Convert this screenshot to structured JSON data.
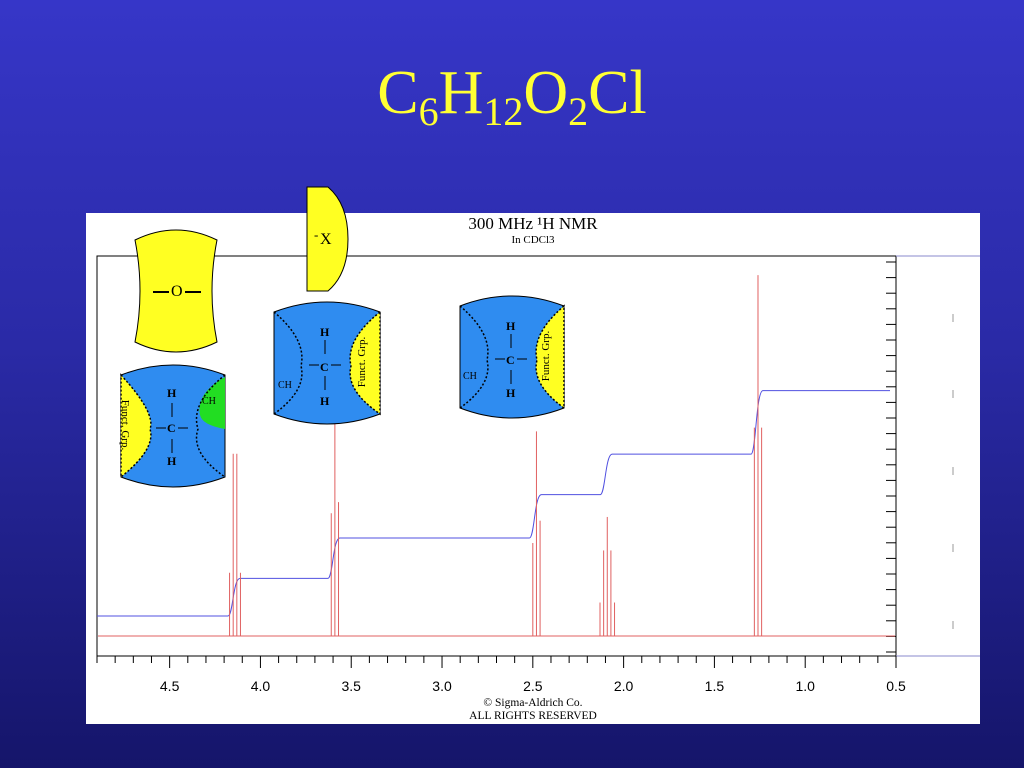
{
  "slide": {
    "title_parts": [
      {
        "text": "C",
        "sub": "6"
      },
      {
        "text": "H",
        "sub": "12"
      },
      {
        "text": "O",
        "sub": "2"
      },
      {
        "text": "Cl",
        "sub": ""
      }
    ]
  },
  "chart_data": {
    "type": "line",
    "title": "300 MHz ¹H NMR",
    "subtitle": "In CDCl3",
    "xlabel": "",
    "ylabel": "",
    "xlim": [
      4.9,
      0.5
    ],
    "x_reversed": true,
    "xticks": [
      "4.5",
      "4.0",
      "3.5",
      "3.0",
      "2.5",
      "2.0",
      "1.5",
      "1.0",
      "0.5"
    ],
    "xtick_values": [
      4.5,
      4.0,
      3.5,
      3.0,
      2.5,
      2.0,
      1.5,
      1.0,
      0.5
    ],
    "grid": false,
    "series": [
      {
        "peaks": [
          {
            "ppm": 4.17,
            "height": 0.17
          },
          {
            "ppm": 4.15,
            "height": 0.49
          },
          {
            "ppm": 4.13,
            "height": 0.49
          },
          {
            "ppm": 4.11,
            "height": 0.17
          },
          {
            "ppm": 3.61,
            "height": 0.33
          },
          {
            "ppm": 3.59,
            "height": 0.67
          },
          {
            "ppm": 3.57,
            "height": 0.36
          },
          {
            "ppm": 2.5,
            "height": 0.25
          },
          {
            "ppm": 2.48,
            "height": 0.55
          },
          {
            "ppm": 2.46,
            "height": 0.31
          },
          {
            "ppm": 2.13,
            "height": 0.09
          },
          {
            "ppm": 2.11,
            "height": 0.23
          },
          {
            "ppm": 2.09,
            "height": 0.32
          },
          {
            "ppm": 2.07,
            "height": 0.23
          },
          {
            "ppm": 2.05,
            "height": 0.09
          },
          {
            "ppm": 1.28,
            "height": 0.56
          },
          {
            "ppm": 1.26,
            "height": 0.97
          },
          {
            "ppm": 1.24,
            "height": 0.56
          }
        ]
      },
      {
        "integral_steps": [
          {
            "ppm": 4.14,
            "level": 0.13
          },
          {
            "ppm": 3.59,
            "level": 0.27
          },
          {
            "ppm": 2.48,
            "level": 0.42
          },
          {
            "ppm": 2.09,
            "level": 0.56
          },
          {
            "ppm": 1.26,
            "level": 0.78
          }
        ]
      }
    ]
  },
  "copyright": {
    "line1": "© Sigma-Aldrich Co.",
    "line2": "ALL RIGHTS RESERVED"
  },
  "fragments": {
    "ether_o": "O",
    "halide_x": "X",
    "halide_charge": "-",
    "h": "H",
    "c": "C",
    "ch": "CH",
    "funct_grp": "Funct. Grp."
  },
  "colors": {
    "background": "#2f2fbf",
    "title": "#ffff33",
    "spectrum": "#e06060",
    "integral": "#5050e0",
    "fragment_blue": "#2f8cf0",
    "fragment_yellow": "#ffff22",
    "fragment_green": "#22dd22"
  }
}
